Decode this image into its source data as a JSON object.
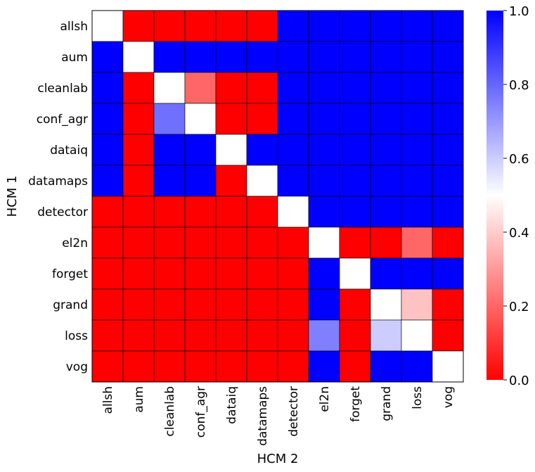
{
  "chart_data": {
    "type": "heatmap",
    "title": "",
    "xlabel": "HCM 2",
    "ylabel": "HCM 1",
    "x_categories": [
      "allsh",
      "aum",
      "cleanlab",
      "conf_agr",
      "dataiq",
      "datamaps",
      "detector",
      "el2n",
      "forget",
      "grand",
      "loss",
      "vog"
    ],
    "y_categories": [
      "allsh",
      "aum",
      "cleanlab",
      "conf_agr",
      "dataiq",
      "datamaps",
      "detector",
      "el2n",
      "forget",
      "grand",
      "loss",
      "vog"
    ],
    "values": [
      [
        0.5,
        0,
        0,
        0,
        0,
        0,
        1,
        1,
        1,
        1,
        1,
        1
      ],
      [
        1,
        0.5,
        1,
        1,
        1,
        1,
        1,
        1,
        1,
        1,
        1,
        1
      ],
      [
        1,
        0,
        0.5,
        0.2,
        0,
        0,
        1,
        1,
        1,
        1,
        1,
        1
      ],
      [
        1,
        0,
        0.78,
        0.5,
        0,
        0,
        1,
        1,
        1,
        1,
        1,
        1
      ],
      [
        1,
        0,
        1,
        1,
        0.5,
        1,
        1,
        1,
        1,
        1,
        1,
        1
      ],
      [
        1,
        0,
        1,
        1,
        0,
        0.5,
        1,
        1,
        1,
        1,
        1,
        1
      ],
      [
        0,
        0,
        0,
        0,
        0,
        0,
        0.5,
        1,
        1,
        1,
        1,
        1
      ],
      [
        0,
        0,
        0,
        0,
        0,
        0,
        0,
        0.5,
        0,
        0,
        0.2,
        0
      ],
      [
        0,
        0,
        0,
        0,
        0,
        0,
        0,
        1,
        0.5,
        1,
        1,
        1
      ],
      [
        0,
        0,
        0,
        0,
        0,
        0,
        0,
        1,
        0,
        0.5,
        0.38,
        0
      ],
      [
        0,
        0,
        0,
        0,
        0,
        0,
        0,
        0.75,
        0,
        0.6,
        0.5,
        0
      ],
      [
        0,
        0,
        0,
        0,
        0,
        0,
        0,
        1,
        0,
        1,
        1,
        0.5
      ]
    ],
    "colorbar": {
      "range": [
        0.0,
        1.0
      ],
      "ticks": [
        0.0,
        0.2,
        0.4,
        0.6,
        0.8,
        1.0
      ],
      "tick_labels": [
        "0.0",
        "0.2",
        "0.4",
        "0.6",
        "0.8",
        "1.0"
      ],
      "colormap": "bwr_r",
      "low_color": "#ff0000",
      "mid_color": "#ffffff",
      "high_color": "#0000ff"
    }
  }
}
